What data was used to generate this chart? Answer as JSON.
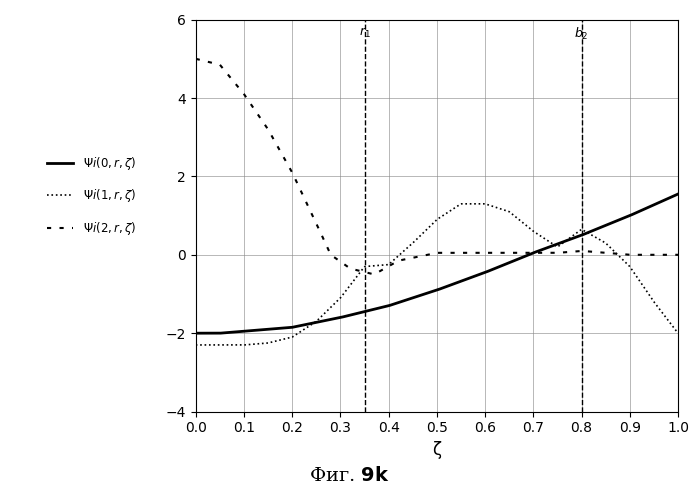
{
  "title": "Фиг. 9k",
  "xlabel": "ζ",
  "xlim": [
    0,
    1
  ],
  "ylim": [
    -4,
    6
  ],
  "xticks": [
    0,
    0.1,
    0.2,
    0.3,
    0.4,
    0.5,
    0.6,
    0.7,
    0.8,
    0.9,
    1.0
  ],
  "yticks": [
    -4,
    -2,
    0,
    2,
    4,
    6
  ],
  "vline1": 0.35,
  "vline2": 0.8,
  "vline1_label": "r₁",
  "vline2_label": "b₂",
  "background_color": "#ffffff",
  "grid_color": "#888888",
  "curve0_x": [
    0,
    0.05,
    0.1,
    0.2,
    0.3,
    0.4,
    0.5,
    0.6,
    0.7,
    0.8,
    0.9,
    1.0
  ],
  "curve0_y": [
    -2.0,
    -2.0,
    -1.95,
    -1.85,
    -1.6,
    -1.3,
    -0.9,
    -0.45,
    0.05,
    0.5,
    1.0,
    1.55
  ],
  "curve1_x": [
    0,
    0.05,
    0.1,
    0.15,
    0.2,
    0.25,
    0.3,
    0.35,
    0.4,
    0.45,
    0.5,
    0.55,
    0.6,
    0.65,
    0.7,
    0.75,
    0.8,
    0.85,
    0.9,
    0.95,
    1.0
  ],
  "curve1_y": [
    -2.3,
    -2.3,
    -2.3,
    -2.25,
    -2.1,
    -1.7,
    -1.1,
    -0.3,
    -0.25,
    0.3,
    0.9,
    1.3,
    1.3,
    1.1,
    0.6,
    0.2,
    0.65,
    0.3,
    -0.3,
    -1.2,
    -2.0
  ],
  "curve2_x": [
    0,
    0.05,
    0.1,
    0.15,
    0.2,
    0.25,
    0.28,
    0.32,
    0.37,
    0.42,
    0.5,
    0.6,
    0.7,
    0.75,
    0.8,
    0.85,
    0.9,
    1.0
  ],
  "curve2_y": [
    5.0,
    4.85,
    4.1,
    3.2,
    2.1,
    0.8,
    0.0,
    -0.35,
    -0.5,
    -0.15,
    0.05,
    0.05,
    0.05,
    0.05,
    0.1,
    0.05,
    0.0,
    0.0
  ],
  "legend_labels": [
    "$\\Psi i(0,r,\\zeta)$",
    "$\\Psi i(1,r,\\zeta)$",
    "$\\Psi i(2,r,\\zeta)$"
  ]
}
